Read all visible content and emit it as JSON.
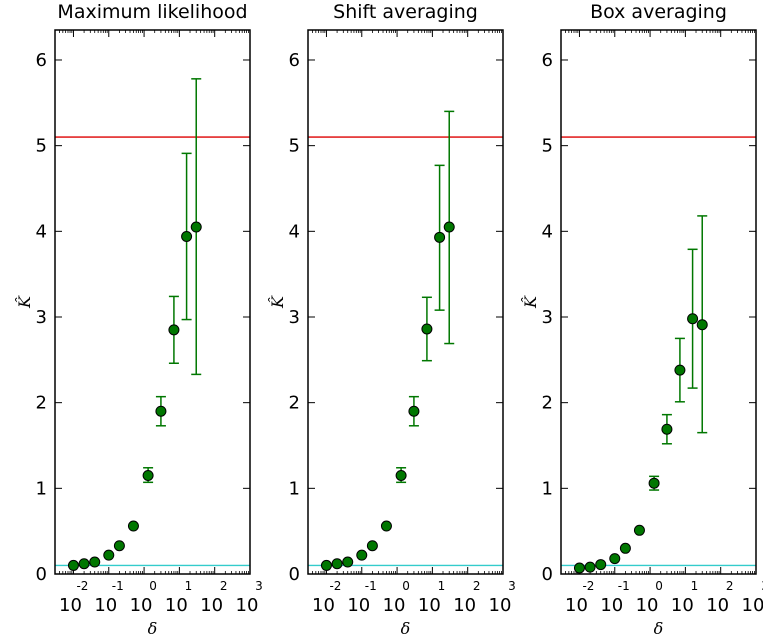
{
  "chart_data": [
    {
      "type": "scatter",
      "title": "Maximum likelihood",
      "xlabel": "δ",
      "ylabel": "K̂",
      "xscale": "log",
      "xlim": [
        0.003,
        1000
      ],
      "ylim": [
        0,
        6.35
      ],
      "xticks": [
        {
          "base": "10",
          "exp": "-2"
        },
        {
          "base": "10",
          "exp": "-1"
        },
        {
          "base": "10",
          "exp": "0"
        },
        {
          "base": "10",
          "exp": "1"
        },
        {
          "base": "10",
          "exp": "2"
        },
        {
          "base": "10",
          "exp": "3"
        }
      ],
      "yticks": [
        "0",
        "1",
        "2",
        "3",
        "4",
        "5",
        "6"
      ],
      "reference_lines": [
        {
          "y": 5.1,
          "color": "#dd0000"
        },
        {
          "y": 0.1,
          "color": "#33cccc"
        }
      ],
      "marker_color": "#007700",
      "points": [
        {
          "x": 0.01,
          "y": 0.1,
          "err_low": null,
          "err_high": null
        },
        {
          "x": 0.02,
          "y": 0.12,
          "err_low": null,
          "err_high": null
        },
        {
          "x": 0.04,
          "y": 0.14,
          "err_low": null,
          "err_high": null
        },
        {
          "x": 0.1,
          "y": 0.22,
          "err_low": null,
          "err_high": null
        },
        {
          "x": 0.2,
          "y": 0.33,
          "err_low": null,
          "err_high": null
        },
        {
          "x": 0.5,
          "y": 0.56,
          "err_low": null,
          "err_high": null
        },
        {
          "x": 1.3,
          "y": 1.15,
          "err_low": 1.07,
          "err_high": 1.24
        },
        {
          "x": 3.0,
          "y": 1.9,
          "err_low": 1.73,
          "err_high": 2.07
        },
        {
          "x": 7.0,
          "y": 2.85,
          "err_low": 2.46,
          "err_high": 3.24
        },
        {
          "x": 16.0,
          "y": 3.94,
          "err_low": 2.97,
          "err_high": 4.91
        },
        {
          "x": 30.0,
          "y": 4.05,
          "err_low": 2.33,
          "err_high": 5.78
        }
      ]
    },
    {
      "type": "scatter",
      "title": "Shift averaging",
      "xlabel": "δ",
      "ylabel": "K̂",
      "xscale": "log",
      "xlim": [
        0.003,
        1000
      ],
      "ylim": [
        0,
        6.35
      ],
      "xticks": [
        {
          "base": "10",
          "exp": "-2"
        },
        {
          "base": "10",
          "exp": "-1"
        },
        {
          "base": "10",
          "exp": "0"
        },
        {
          "base": "10",
          "exp": "1"
        },
        {
          "base": "10",
          "exp": "2"
        },
        {
          "base": "10",
          "exp": "3"
        }
      ],
      "yticks": [
        "0",
        "1",
        "2",
        "3",
        "4",
        "5",
        "6"
      ],
      "reference_lines": [
        {
          "y": 5.1,
          "color": "#dd0000"
        },
        {
          "y": 0.1,
          "color": "#33cccc"
        }
      ],
      "marker_color": "#007700",
      "points": [
        {
          "x": 0.01,
          "y": 0.1,
          "err_low": null,
          "err_high": null
        },
        {
          "x": 0.02,
          "y": 0.12,
          "err_low": null,
          "err_high": null
        },
        {
          "x": 0.04,
          "y": 0.14,
          "err_low": null,
          "err_high": null
        },
        {
          "x": 0.1,
          "y": 0.22,
          "err_low": null,
          "err_high": null
        },
        {
          "x": 0.2,
          "y": 0.33,
          "err_low": null,
          "err_high": null
        },
        {
          "x": 0.5,
          "y": 0.56,
          "err_low": null,
          "err_high": null
        },
        {
          "x": 1.3,
          "y": 1.15,
          "err_low": 1.07,
          "err_high": 1.24
        },
        {
          "x": 3.0,
          "y": 1.9,
          "err_low": 1.73,
          "err_high": 2.07
        },
        {
          "x": 7.0,
          "y": 2.86,
          "err_low": 2.49,
          "err_high": 3.23
        },
        {
          "x": 16.0,
          "y": 3.93,
          "err_low": 3.08,
          "err_high": 4.77
        },
        {
          "x": 30.0,
          "y": 4.05,
          "err_low": 2.69,
          "err_high": 5.4
        }
      ]
    },
    {
      "type": "scatter",
      "title": "Box averaging",
      "xlabel": "δ",
      "ylabel": "K̂",
      "xscale": "log",
      "xlim": [
        0.003,
        1000
      ],
      "ylim": [
        0,
        6.35
      ],
      "xticks": [
        {
          "base": "10",
          "exp": "-2"
        },
        {
          "base": "10",
          "exp": "-1"
        },
        {
          "base": "10",
          "exp": "0"
        },
        {
          "base": "10",
          "exp": "1"
        },
        {
          "base": "10",
          "exp": "2"
        },
        {
          "base": "10",
          "exp": "3"
        }
      ],
      "yticks": [
        "0",
        "1",
        "2",
        "3",
        "4",
        "5",
        "6"
      ],
      "reference_lines": [
        {
          "y": 5.1,
          "color": "#dd0000"
        },
        {
          "y": 0.1,
          "color": "#33cccc"
        }
      ],
      "marker_color": "#007700",
      "points": [
        {
          "x": 0.01,
          "y": 0.07,
          "err_low": null,
          "err_high": null
        },
        {
          "x": 0.02,
          "y": 0.08,
          "err_low": null,
          "err_high": null
        },
        {
          "x": 0.04,
          "y": 0.11,
          "err_low": null,
          "err_high": null
        },
        {
          "x": 0.1,
          "y": 0.18,
          "err_low": null,
          "err_high": null
        },
        {
          "x": 0.2,
          "y": 0.3,
          "err_low": null,
          "err_high": null
        },
        {
          "x": 0.5,
          "y": 0.51,
          "err_low": null,
          "err_high": null
        },
        {
          "x": 1.3,
          "y": 1.06,
          "err_low": 0.98,
          "err_high": 1.14
        },
        {
          "x": 3.0,
          "y": 1.69,
          "err_low": 1.52,
          "err_high": 1.86
        },
        {
          "x": 7.0,
          "y": 2.38,
          "err_low": 2.01,
          "err_high": 2.75
        },
        {
          "x": 16.0,
          "y": 2.98,
          "err_low": 2.17,
          "err_high": 3.79
        },
        {
          "x": 30.0,
          "y": 2.91,
          "err_low": 1.65,
          "err_high": 4.18
        }
      ]
    }
  ]
}
